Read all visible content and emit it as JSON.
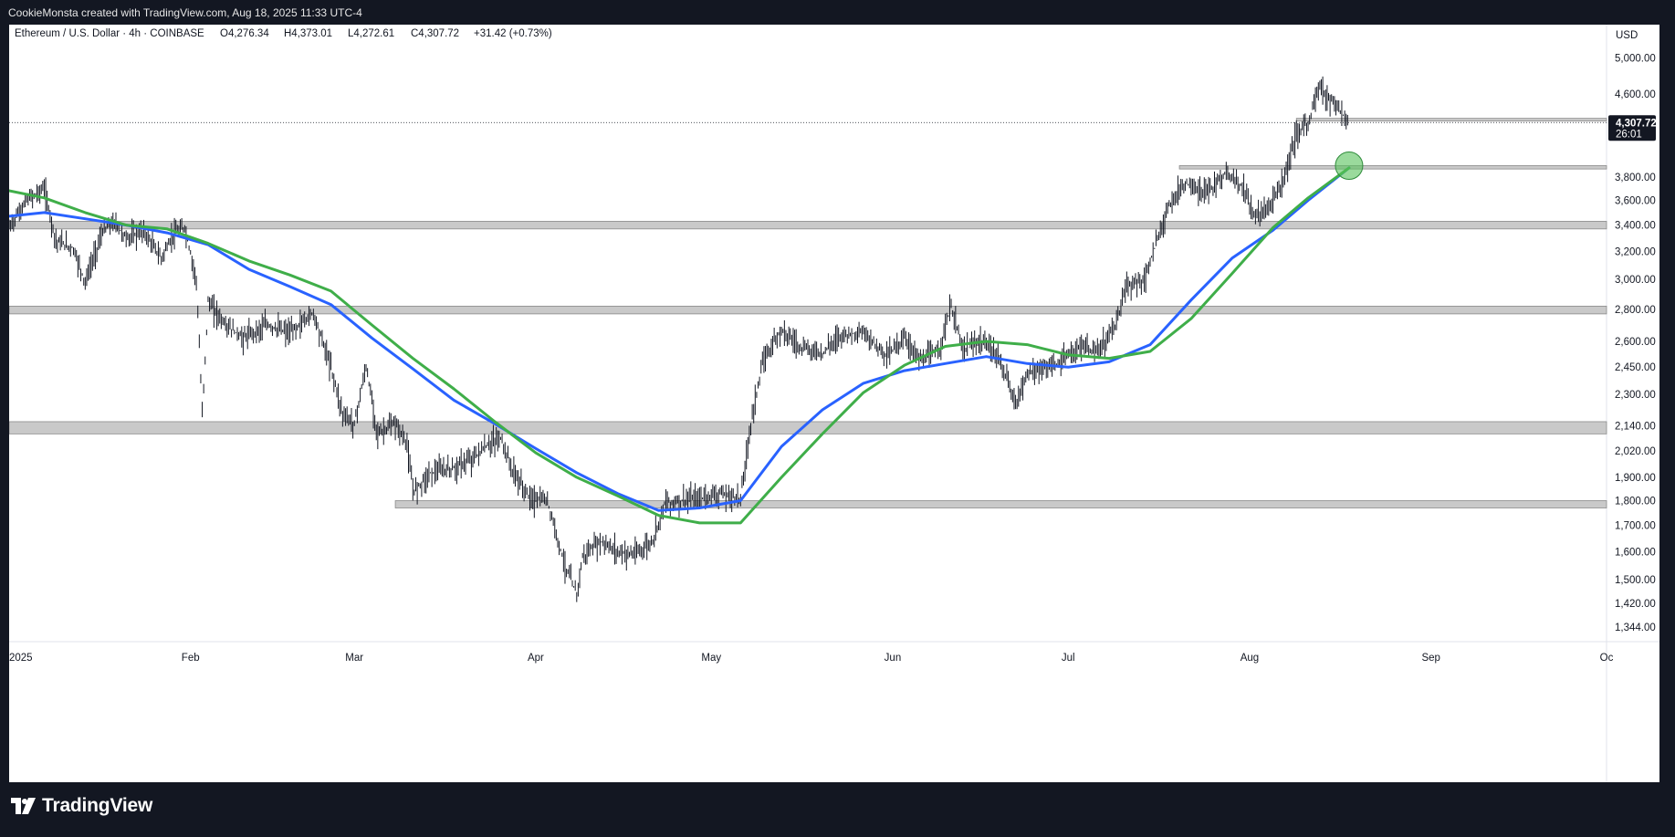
{
  "header": {
    "attribution": "CookieMonsta created with TradingView.com, Aug 18, 2025 11:33 UTC-4"
  },
  "legend": {
    "symbol": "Ethereum / U.S. Dollar · 4h · COINBASE",
    "open": "O4,276.34",
    "high": "H4,373.01",
    "low": "L4,272.61",
    "close": "C4,307.72",
    "change": "+31.42 (+0.73%)"
  },
  "price_axis": {
    "currency": "USD",
    "last_price": "4,307.72",
    "countdown": "26:01"
  },
  "footer": {
    "brand": "TradingView"
  },
  "colors": {
    "candle": "#131722",
    "ma_blue": "#2962ff",
    "ma_green": "#3fae49",
    "zone": "#c9c9c9",
    "highlight": "#56c25a"
  },
  "chart_data": {
    "type": "line",
    "title": "Ethereum / U.S. Dollar · 4h · COINBASE",
    "scale": "log",
    "ylim": [
      1300,
      5400
    ],
    "y_ticks": [
      5000,
      4600,
      3800,
      3600,
      3400,
      3200,
      3000,
      2800,
      2600,
      2450,
      2300,
      2140,
      2020,
      1900,
      1800,
      1700,
      1600,
      1500,
      1420,
      1344
    ],
    "y_tick_labels": [
      "5,000.00",
      "4,600.00",
      "3,800.00",
      "3,600.00",
      "3,400.00",
      "3,200.00",
      "3,000.00",
      "2,800.00",
      "2,600.00",
      "2,450.00",
      "2,300.00",
      "2,140.00",
      "2,020.00",
      "1,900.00",
      "1,800.00",
      "1,700.00",
      "1,600.00",
      "1,500.00",
      "1,420.00",
      "1,344.00"
    ],
    "xlim": [
      "2025-01-01",
      "2025-10-01"
    ],
    "x_ticks": [
      {
        "label": "2025",
        "date": "2025-01-01"
      },
      {
        "label": "Feb",
        "date": "2025-02-01"
      },
      {
        "label": "Mar",
        "date": "2025-03-01"
      },
      {
        "label": "Apr",
        "date": "2025-04-01"
      },
      {
        "label": "May",
        "date": "2025-05-01"
      },
      {
        "label": "Jun",
        "date": "2025-06-01"
      },
      {
        "label": "Jul",
        "date": "2025-07-01"
      },
      {
        "label": "Aug",
        "date": "2025-08-01"
      },
      {
        "label": "Sep",
        "date": "2025-09-01"
      },
      {
        "label": "Oc",
        "date": "2025-10-01"
      }
    ],
    "series": [
      {
        "name": "",
        "color": "#131722",
        "points": [
          [
            "2025-01-01",
            3380
          ],
          [
            "2025-01-04",
            3600
          ],
          [
            "2025-01-07",
            3700
          ],
          [
            "2025-01-09",
            3280
          ],
          [
            "2025-01-12",
            3220
          ],
          [
            "2025-01-14",
            2980
          ],
          [
            "2025-01-17",
            3350
          ],
          [
            "2025-01-19",
            3420
          ],
          [
            "2025-01-21",
            3300
          ],
          [
            "2025-01-24",
            3350
          ],
          [
            "2025-01-27",
            3150
          ],
          [
            "2025-01-29",
            3320
          ],
          [
            "2025-01-31",
            3380
          ],
          [
            "2025-02-02",
            3000
          ],
          [
            "2025-02-03",
            2200
          ],
          [
            "2025-02-04",
            2850
          ],
          [
            "2025-02-07",
            2700
          ],
          [
            "2025-02-10",
            2620
          ],
          [
            "2025-02-14",
            2700
          ],
          [
            "2025-02-18",
            2650
          ],
          [
            "2025-02-22",
            2780
          ],
          [
            "2025-02-25",
            2450
          ],
          [
            "2025-02-27",
            2200
          ],
          [
            "2025-03-01",
            2150
          ],
          [
            "2025-03-03",
            2450
          ],
          [
            "2025-03-05",
            2100
          ],
          [
            "2025-03-08",
            2150
          ],
          [
            "2025-03-10",
            2050
          ],
          [
            "2025-03-11",
            1840
          ],
          [
            "2025-03-14",
            1920
          ],
          [
            "2025-03-18",
            1940
          ],
          [
            "2025-03-21",
            1980
          ],
          [
            "2025-03-24",
            2050
          ],
          [
            "2025-03-26",
            2080
          ],
          [
            "2025-03-28",
            1930
          ],
          [
            "2025-03-31",
            1810
          ],
          [
            "2025-04-03",
            1800
          ],
          [
            "2025-04-06",
            1550
          ],
          [
            "2025-04-08",
            1450
          ],
          [
            "2025-04-09",
            1580
          ],
          [
            "2025-04-12",
            1640
          ],
          [
            "2025-04-15",
            1600
          ],
          [
            "2025-04-18",
            1590
          ],
          [
            "2025-04-21",
            1640
          ],
          [
            "2025-04-23",
            1790
          ],
          [
            "2025-04-26",
            1800
          ],
          [
            "2025-04-29",
            1810
          ],
          [
            "2025-05-02",
            1830
          ],
          [
            "2025-05-06",
            1810
          ],
          [
            "2025-05-08",
            2200
          ],
          [
            "2025-05-10",
            2500
          ],
          [
            "2025-05-13",
            2680
          ],
          [
            "2025-05-16",
            2570
          ],
          [
            "2025-05-20",
            2530
          ],
          [
            "2025-05-23",
            2640
          ],
          [
            "2025-05-27",
            2650
          ],
          [
            "2025-05-31",
            2520
          ],
          [
            "2025-06-03",
            2620
          ],
          [
            "2025-06-06",
            2480
          ],
          [
            "2025-06-09",
            2560
          ],
          [
            "2025-06-11",
            2820
          ],
          [
            "2025-06-13",
            2550
          ],
          [
            "2025-06-16",
            2600
          ],
          [
            "2025-06-19",
            2520
          ],
          [
            "2025-06-22",
            2250
          ],
          [
            "2025-06-24",
            2420
          ],
          [
            "2025-06-27",
            2440
          ],
          [
            "2025-06-30",
            2480
          ],
          [
            "2025-07-03",
            2570
          ],
          [
            "2025-07-06",
            2530
          ],
          [
            "2025-07-09",
            2700
          ],
          [
            "2025-07-11",
            2950
          ],
          [
            "2025-07-14",
            3000
          ],
          [
            "2025-07-16",
            3250
          ],
          [
            "2025-07-18",
            3550
          ],
          [
            "2025-07-21",
            3750
          ],
          [
            "2025-07-24",
            3650
          ],
          [
            "2025-07-26",
            3720
          ],
          [
            "2025-07-28",
            3850
          ],
          [
            "2025-07-31",
            3700
          ],
          [
            "2025-08-02",
            3450
          ],
          [
            "2025-08-05",
            3600
          ],
          [
            "2025-08-07",
            3800
          ],
          [
            "2025-08-09",
            4200
          ],
          [
            "2025-08-11",
            4300
          ],
          [
            "2025-08-13",
            4700
          ],
          [
            "2025-08-14",
            4600
          ],
          [
            "2025-08-16",
            4450
          ],
          [
            "2025-08-18",
            4308
          ]
        ]
      },
      {
        "name": "",
        "color": "#2962ff",
        "points": [
          [
            "2025-01-01",
            3470
          ],
          [
            "2025-01-07",
            3500
          ],
          [
            "2025-01-14",
            3450
          ],
          [
            "2025-01-21",
            3400
          ],
          [
            "2025-01-28",
            3340
          ],
          [
            "2025-02-04",
            3250
          ],
          [
            "2025-02-11",
            3070
          ],
          [
            "2025-02-18",
            2950
          ],
          [
            "2025-02-25",
            2830
          ],
          [
            "2025-03-04",
            2620
          ],
          [
            "2025-03-11",
            2440
          ],
          [
            "2025-03-18",
            2270
          ],
          [
            "2025-03-25",
            2150
          ],
          [
            "2025-04-01",
            2030
          ],
          [
            "2025-04-08",
            1920
          ],
          [
            "2025-04-15",
            1830
          ],
          [
            "2025-04-22",
            1760
          ],
          [
            "2025-04-29",
            1770
          ],
          [
            "2025-05-06",
            1800
          ],
          [
            "2025-05-13",
            2040
          ],
          [
            "2025-05-20",
            2220
          ],
          [
            "2025-05-27",
            2360
          ],
          [
            "2025-06-03",
            2430
          ],
          [
            "2025-06-10",
            2470
          ],
          [
            "2025-06-17",
            2510
          ],
          [
            "2025-06-24",
            2470
          ],
          [
            "2025-07-01",
            2450
          ],
          [
            "2025-07-08",
            2480
          ],
          [
            "2025-07-15",
            2580
          ],
          [
            "2025-07-22",
            2860
          ],
          [
            "2025-07-29",
            3150
          ],
          [
            "2025-08-05",
            3360
          ],
          [
            "2025-08-11",
            3600
          ],
          [
            "2025-08-18",
            3880
          ]
        ]
      },
      {
        "name": "",
        "color": "#3fae49",
        "points": [
          [
            "2025-01-01",
            3680
          ],
          [
            "2025-01-07",
            3620
          ],
          [
            "2025-01-14",
            3500
          ],
          [
            "2025-01-21",
            3400
          ],
          [
            "2025-01-28",
            3370
          ],
          [
            "2025-02-04",
            3260
          ],
          [
            "2025-02-11",
            3130
          ],
          [
            "2025-02-18",
            3030
          ],
          [
            "2025-02-25",
            2920
          ],
          [
            "2025-03-04",
            2700
          ],
          [
            "2025-03-11",
            2500
          ],
          [
            "2025-03-18",
            2330
          ],
          [
            "2025-03-25",
            2160
          ],
          [
            "2025-04-01",
            2010
          ],
          [
            "2025-04-08",
            1900
          ],
          [
            "2025-04-15",
            1820
          ],
          [
            "2025-04-22",
            1740
          ],
          [
            "2025-04-29",
            1710
          ],
          [
            "2025-05-06",
            1710
          ],
          [
            "2025-05-13",
            1900
          ],
          [
            "2025-05-20",
            2100
          ],
          [
            "2025-05-27",
            2310
          ],
          [
            "2025-06-03",
            2460
          ],
          [
            "2025-06-10",
            2570
          ],
          [
            "2025-06-17",
            2600
          ],
          [
            "2025-06-24",
            2580
          ],
          [
            "2025-07-01",
            2520
          ],
          [
            "2025-07-08",
            2500
          ],
          [
            "2025-07-15",
            2540
          ],
          [
            "2025-07-22",
            2740
          ],
          [
            "2025-07-29",
            3040
          ],
          [
            "2025-08-05",
            3380
          ],
          [
            "2025-08-11",
            3620
          ],
          [
            "2025-08-18",
            3880
          ]
        ]
      }
    ],
    "zones": [
      {
        "from": "2025-01-01",
        "to": "2025-10-01",
        "low": 3370,
        "high": 3430
      },
      {
        "from": "2025-01-01",
        "to": "2025-10-01",
        "low": 2770,
        "high": 2820
      },
      {
        "from": "2025-01-01",
        "to": "2025-10-01",
        "low": 2100,
        "high": 2160
      },
      {
        "from": "2025-03-08",
        "to": "2025-10-01",
        "low": 1770,
        "high": 1800
      },
      {
        "from": "2025-07-20",
        "to": "2025-10-01",
        "low": 3870,
        "high": 3900
      },
      {
        "from": "2025-08-09",
        "to": "2025-10-01",
        "low": 4330,
        "high": 4350
      }
    ],
    "highlight": {
      "date": "2025-08-18",
      "value": 3900
    },
    "last_price": 4307.72
  }
}
